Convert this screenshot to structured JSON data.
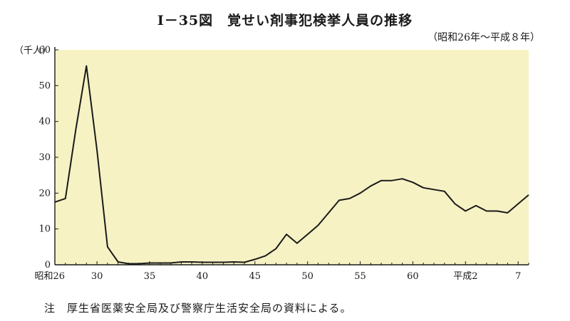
{
  "chart_data": {
    "type": "line",
    "title": "Ⅰ－35図　覚せい剤事犯検挙人員の推移",
    "subtitle": "（昭和26年～平成８年）",
    "unit_label": "（千人）",
    "note": "注　厚生省医薬安全局及び警察庁生活安全局の資料による。",
    "ylim": [
      0,
      60
    ],
    "y_ticks": [
      0,
      10,
      20,
      30,
      40,
      50,
      60
    ],
    "xlim": [
      1951,
      1996
    ],
    "x_ticks": [
      {
        "year": 1951,
        "label": "昭和26"
      },
      {
        "year": 1955,
        "label": "30"
      },
      {
        "year": 1960,
        "label": "35"
      },
      {
        "year": 1965,
        "label": "40"
      },
      {
        "year": 1970,
        "label": "45"
      },
      {
        "year": 1975,
        "label": "50"
      },
      {
        "year": 1980,
        "label": "55"
      },
      {
        "year": 1985,
        "label": "60"
      },
      {
        "year": 1990,
        "label": "平成2"
      },
      {
        "year": 1995,
        "label": "7"
      }
    ],
    "grid": false,
    "colors": {
      "plot_background": "#f6f2c4",
      "line": "#1a1a1a"
    },
    "series": [
      {
        "x": [
          1951,
          1952,
          1953,
          1954,
          1955,
          1956,
          1957,
          1958,
          1959,
          1960,
          1961,
          1962,
          1963,
          1964,
          1965,
          1966,
          1967,
          1968,
          1969,
          1970,
          1971,
          1972,
          1973,
          1974,
          1975,
          1976,
          1977,
          1978,
          1979,
          1980,
          1981,
          1982,
          1983,
          1984,
          1985,
          1986,
          1987,
          1988,
          1989,
          1990,
          1991,
          1992,
          1993,
          1994,
          1995,
          1996
        ],
        "values": [
          17.5,
          18.5,
          38.0,
          55.5,
          32.0,
          5.0,
          0.8,
          0.3,
          0.3,
          0.5,
          0.5,
          0.5,
          0.8,
          0.8,
          0.7,
          0.7,
          0.7,
          0.8,
          0.7,
          1.5,
          2.5,
          4.5,
          8.5,
          6.0,
          8.5,
          11.0,
          14.5,
          18.0,
          18.5,
          20.0,
          22.0,
          23.5,
          23.5,
          24.0,
          23.0,
          21.5,
          21.0,
          20.5,
          17.0,
          15.0,
          16.5,
          15.0,
          15.0,
          14.5,
          17.0,
          19.5
        ]
      }
    ]
  }
}
